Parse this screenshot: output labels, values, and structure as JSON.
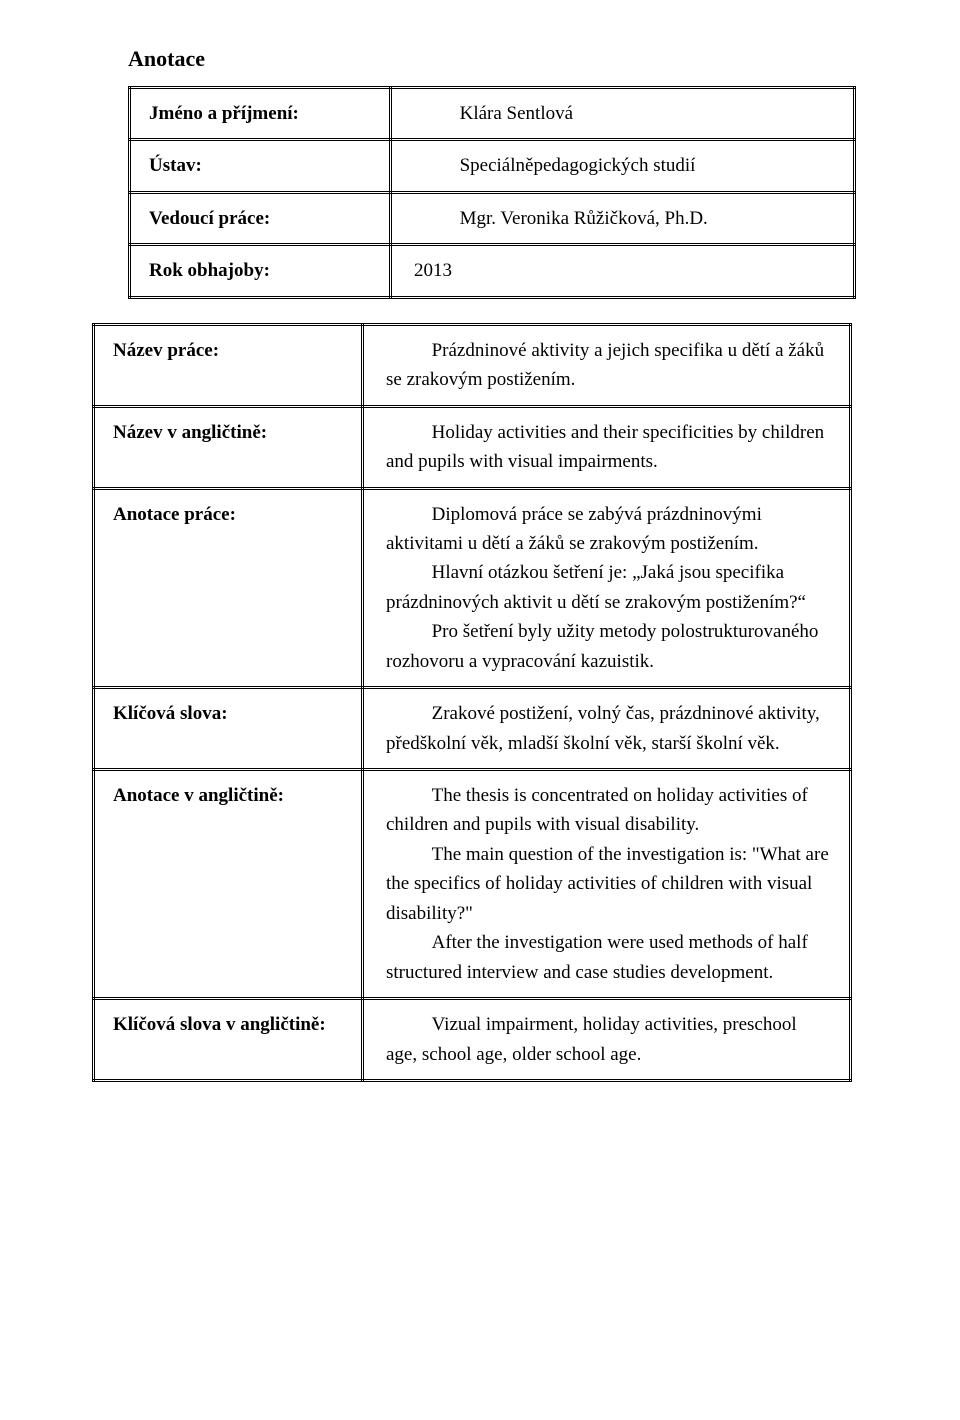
{
  "title": "Anotace",
  "topTable": {
    "rows": [
      {
        "label": "Jméno a příjmení:",
        "value": "Klára Sentlová"
      },
      {
        "label": "Ústav:",
        "value": "Speciálněpedagogických studií"
      },
      {
        "label": "Vedoucí práce:",
        "value": "Mgr. Veronika Růžičková, Ph.D."
      },
      {
        "label": "Rok obhajoby:",
        "value": "2013"
      }
    ]
  },
  "bottomTable": {
    "rows": [
      {
        "label": "Název práce:",
        "paras": [
          "Prázdninové aktivity a jejich specifika u dětí a žáků se zrakovým postižením."
        ]
      },
      {
        "label": "Název v angličtině:",
        "paras": [
          "Holiday activities and their specificities by children and pupils with visual impairments."
        ]
      },
      {
        "label": "Anotace práce:",
        "paras": [
          "Diplomová práce se zabývá prázdninovými aktivitami u dětí a žáků se zrakovým postižením.",
          "Hlavní otázkou šetření je: „Jaká jsou specifika prázdninových aktivit u dětí se zrakovým postižením?“",
          "Pro šetření byly užity metody polostrukturovaného rozhovoru a vypracování kazuistik."
        ]
      },
      {
        "label": "Klíčová slova:",
        "paras": [
          "Zrakové postižení, volný čas, prázdninové aktivity, předškolní věk, mladší školní věk, starší školní věk."
        ]
      },
      {
        "label": "Anotace v angličtině:",
        "paras": [
          "The thesis is concentrated on holiday activities of children and pupils with visual disability.",
          "The main question of the investigation is: \"What are the specifics of holiday activities of children with visual disability?\"",
          "After the investigation were used methods of half structured interview and case studies development."
        ]
      },
      {
        "label": "Klíčová slova v angličtině:",
        "paras": [
          "Vizual impairment, holiday activities, preschool age, school age, older school age."
        ]
      }
    ]
  }
}
